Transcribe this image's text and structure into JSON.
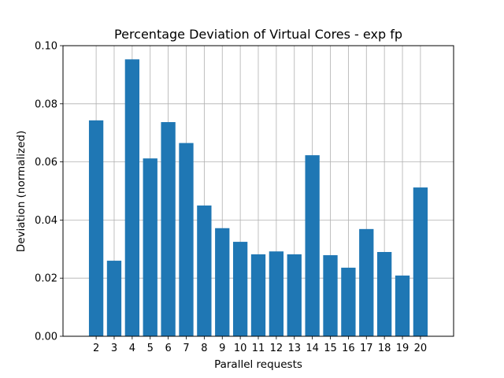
{
  "chart_data": {
    "type": "bar",
    "title": "Percentage Deviation of Virtual Cores - exp fp",
    "xlabel": "Parallel requests",
    "ylabel": "Deviation (normalized)",
    "categories": [
      "2",
      "3",
      "4",
      "5",
      "6",
      "7",
      "8",
      "9",
      "10",
      "11",
      "12",
      "13",
      "14",
      "15",
      "16",
      "17",
      "18",
      "19",
      "20"
    ],
    "values": [
      0.0743,
      0.026,
      0.0953,
      0.0612,
      0.0737,
      0.0665,
      0.045,
      0.0372,
      0.0325,
      0.0282,
      0.0292,
      0.0282,
      0.0623,
      0.0279,
      0.0236,
      0.0369,
      0.029,
      0.0209,
      0.0512
    ],
    "ylim": [
      0,
      0.1
    ],
    "yticks": [
      "0.00",
      "0.02",
      "0.04",
      "0.06",
      "0.08",
      "0.10"
    ],
    "grid": true,
    "bar_color": "#1f77b4"
  }
}
